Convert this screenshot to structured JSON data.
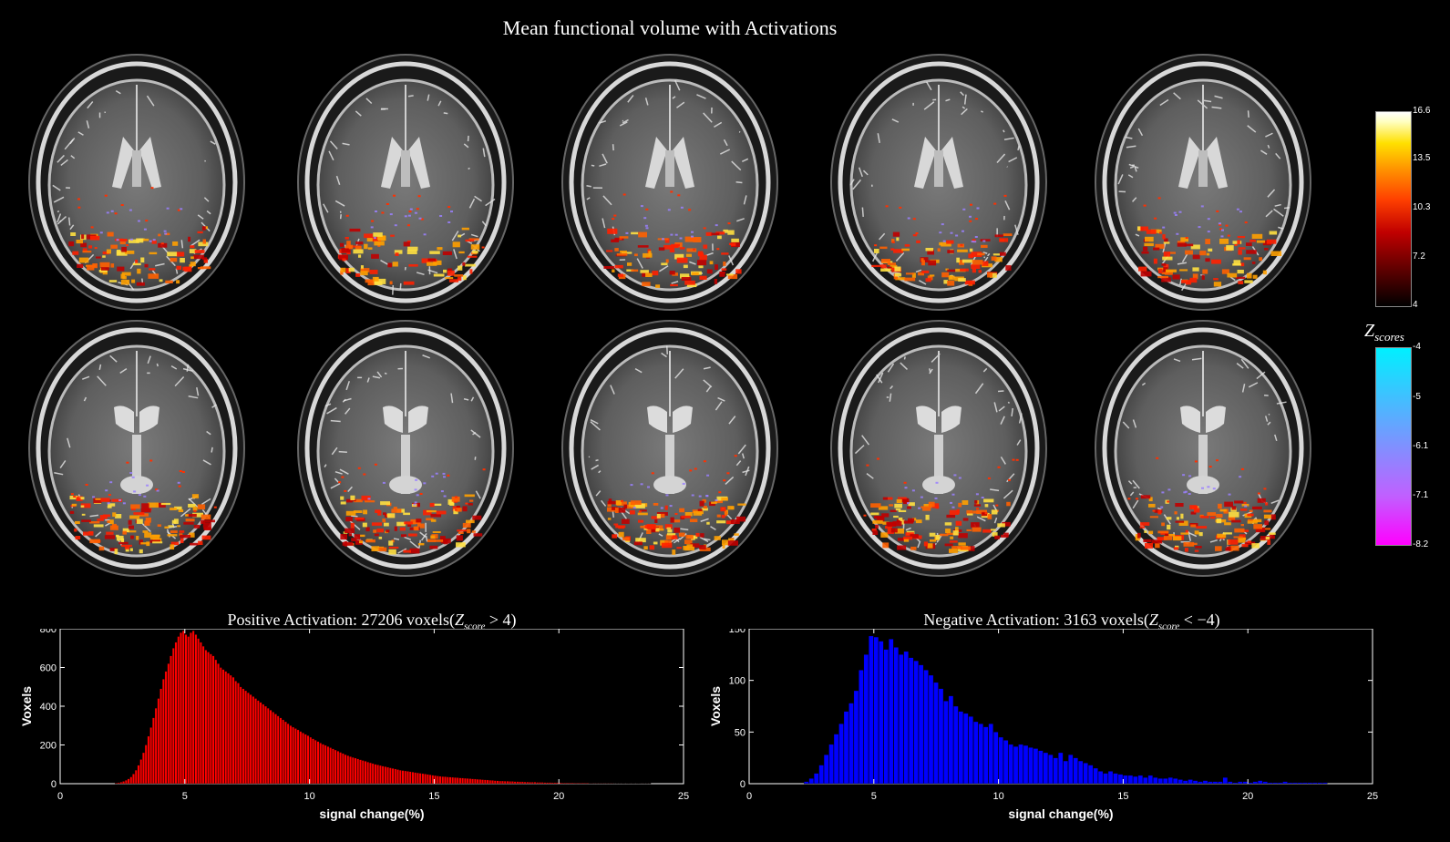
{
  "figure": {
    "title": "Mean functional volume with Activations",
    "colorbar_label": "Z_scores",
    "colorbar_positive": {
      "ticks": [
        "16.6",
        "13.5",
        "10.3",
        "7.2",
        "4"
      ],
      "colors": [
        "#000000",
        "#c00000",
        "#ff9000",
        "#ffe000",
        "#ffffff"
      ]
    },
    "colorbar_negative": {
      "ticks": [
        "-4",
        "-5",
        "-6.1",
        "-7.1",
        "-8.2"
      ],
      "colors": [
        "#00f0ff",
        "#8090ff",
        "#ff00ff"
      ]
    },
    "slices": {
      "rows": 2,
      "cols": 5
    }
  },
  "chart_data": [
    {
      "type": "bar",
      "title": "Positive Activation: 27206 voxels(Z_score > 4)",
      "xlabel": "signal change(%)",
      "ylabel": "Voxels",
      "xlim": [
        0,
        25
      ],
      "ylim": [
        0,
        800
      ],
      "xticks": [
        0,
        5,
        10,
        15,
        20,
        25
      ],
      "yticks": [
        0,
        200,
        400,
        600,
        800
      ],
      "color": "#ff0000",
      "bin_start": 2.2,
      "bin_width": 0.1,
      "values": [
        3,
        5,
        8,
        12,
        18,
        25,
        35,
        50,
        70,
        95,
        125,
        160,
        200,
        245,
        290,
        340,
        390,
        440,
        490,
        540,
        580,
        620,
        660,
        700,
        730,
        760,
        780,
        790,
        770,
        760,
        780,
        790,
        770,
        750,
        730,
        710,
        690,
        680,
        670,
        660,
        640,
        620,
        600,
        590,
        580,
        570,
        560,
        550,
        530,
        520,
        500,
        490,
        480,
        470,
        460,
        450,
        440,
        430,
        420,
        410,
        400,
        390,
        380,
        370,
        360,
        350,
        340,
        330,
        320,
        310,
        300,
        292,
        285,
        278,
        270,
        262,
        255,
        248,
        240,
        232,
        225,
        218,
        210,
        204,
        198,
        192,
        186,
        180,
        174,
        168,
        162,
        156,
        150,
        145,
        140,
        136,
        132,
        128,
        124,
        120,
        116,
        112,
        108,
        104,
        100,
        97,
        94,
        91,
        88,
        85,
        82,
        79,
        76,
        73,
        70,
        68,
        66,
        64,
        62,
        60,
        58,
        56,
        54,
        52,
        50,
        48,
        46,
        44,
        42,
        40,
        38,
        37,
        36,
        35,
        34,
        33,
        32,
        31,
        30,
        29,
        28,
        27,
        26,
        25,
        24,
        23,
        22,
        21,
        20,
        19,
        18,
        17,
        16,
        15,
        14,
        14,
        13,
        13,
        12,
        12,
        11,
        11,
        10,
        10,
        9,
        9,
        8,
        8,
        8,
        7,
        7,
        7,
        6,
        6,
        6,
        5,
        5,
        5,
        5,
        4,
        4,
        4,
        4,
        4,
        3,
        3,
        3,
        3,
        3,
        3,
        2,
        2,
        2,
        2,
        2,
        2,
        2,
        2,
        2,
        2,
        1,
        1,
        1,
        1,
        1,
        1,
        1,
        1,
        1,
        1,
        1,
        1,
        1,
        1,
        1
      ]
    },
    {
      "type": "bar",
      "title": "Negative Activation: 3163 voxels(Z_score < -4)",
      "xlabel": "signal change(%)",
      "ylabel": "Voxels",
      "xlim": [
        0,
        25
      ],
      "ylim": [
        0,
        150
      ],
      "xticks": [
        0,
        5,
        10,
        15,
        20,
        25
      ],
      "yticks": [
        0,
        50,
        100,
        150
      ],
      "color": "#0000ff",
      "bin_start": 2.2,
      "bin_width": 0.2,
      "values": [
        2,
        5,
        10,
        18,
        28,
        38,
        48,
        58,
        70,
        78,
        90,
        110,
        125,
        143,
        142,
        138,
        130,
        140,
        132,
        125,
        128,
        122,
        119,
        115,
        110,
        105,
        98,
        92,
        80,
        85,
        75,
        70,
        68,
        65,
        60,
        58,
        55,
        58,
        50,
        45,
        42,
        38,
        36,
        38,
        37,
        35,
        34,
        32,
        30,
        28,
        25,
        30,
        22,
        28,
        25,
        22,
        20,
        18,
        15,
        12,
        10,
        12,
        10,
        9,
        8,
        8,
        7,
        8,
        6,
        8,
        6,
        5,
        5,
        6,
        5,
        4,
        3,
        4,
        3,
        2,
        3,
        2,
        2,
        2,
        6,
        2,
        1,
        2,
        2,
        1,
        2,
        3,
        2,
        1,
        1,
        1,
        2,
        1,
        1,
        1,
        1,
        1,
        1,
        1,
        1
      ]
    }
  ]
}
